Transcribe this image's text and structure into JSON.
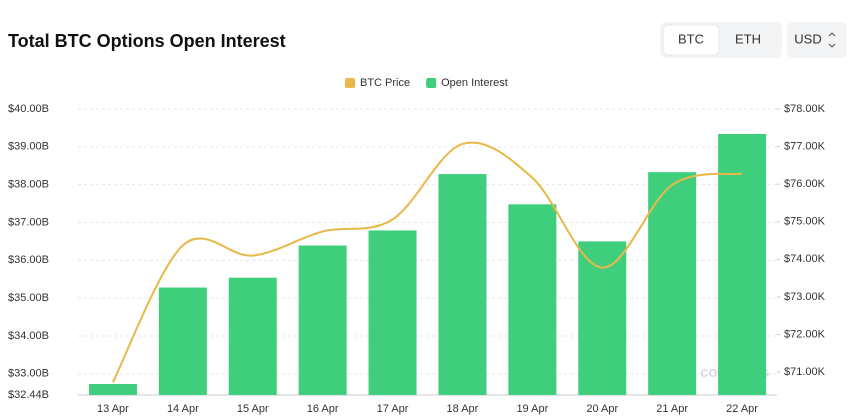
{
  "header": {
    "title": "Total BTC Options Open Interest"
  },
  "controls": {
    "coins": [
      "BTC",
      "ETH"
    ],
    "currency": "USD"
  },
  "chart_data": {
    "type": "combo",
    "categories": [
      "13 Apr",
      "14 Apr",
      "15 Apr",
      "16 Apr",
      "17 Apr",
      "18 Apr",
      "19 Apr",
      "20 Apr",
      "21 Apr",
      "22 Apr"
    ],
    "series": [
      {
        "name": "BTC Price",
        "kind": "line",
        "axis": "y2",
        "color": "#e8b84a",
        "values": [
          70.73,
          74.37,
          74.1,
          74.74,
          75.06,
          77.07,
          76.17,
          73.78,
          75.98,
          76.28
        ]
      },
      {
        "name": "Open Interest",
        "kind": "bar",
        "color": "#3fcf7c",
        "values": [
          32.73,
          35.28,
          35.54,
          36.39,
          36.79,
          38.28,
          37.48,
          36.5,
          38.33,
          39.34
        ]
      }
    ],
    "ylim": [
      32.44,
      40
    ],
    "yticks": [
      {
        "value": 32.44,
        "label": "$32.44B"
      },
      {
        "value": 33,
        "label": "$33.00B"
      },
      {
        "value": 34,
        "label": "$34.00B"
      },
      {
        "value": 35,
        "label": "$35.00B"
      },
      {
        "value": 36,
        "label": "$36.00B"
      },
      {
        "value": 37,
        "label": "$37.00B"
      },
      {
        "value": 38,
        "label": "$38.00B"
      },
      {
        "value": 39,
        "label": "$39.00B"
      },
      {
        "value": 40,
        "label": "$40.00B"
      }
    ],
    "y2lim": [
      70.39,
      78
    ],
    "y2ticks": [
      {
        "value": 71,
        "label": "$71.00K"
      },
      {
        "value": 72,
        "label": "$72.00K"
      },
      {
        "value": 73,
        "label": "$73.00K"
      },
      {
        "value": 74,
        "label": "$74.00K"
      },
      {
        "value": 75,
        "label": "$75.00K"
      },
      {
        "value": 76,
        "label": "$76.00K"
      },
      {
        "value": 77,
        "label": "$77.00K"
      },
      {
        "value": 78,
        "label": "$78.00K"
      }
    ],
    "grid": true,
    "legend": "top",
    "watermark": "coinglass"
  }
}
